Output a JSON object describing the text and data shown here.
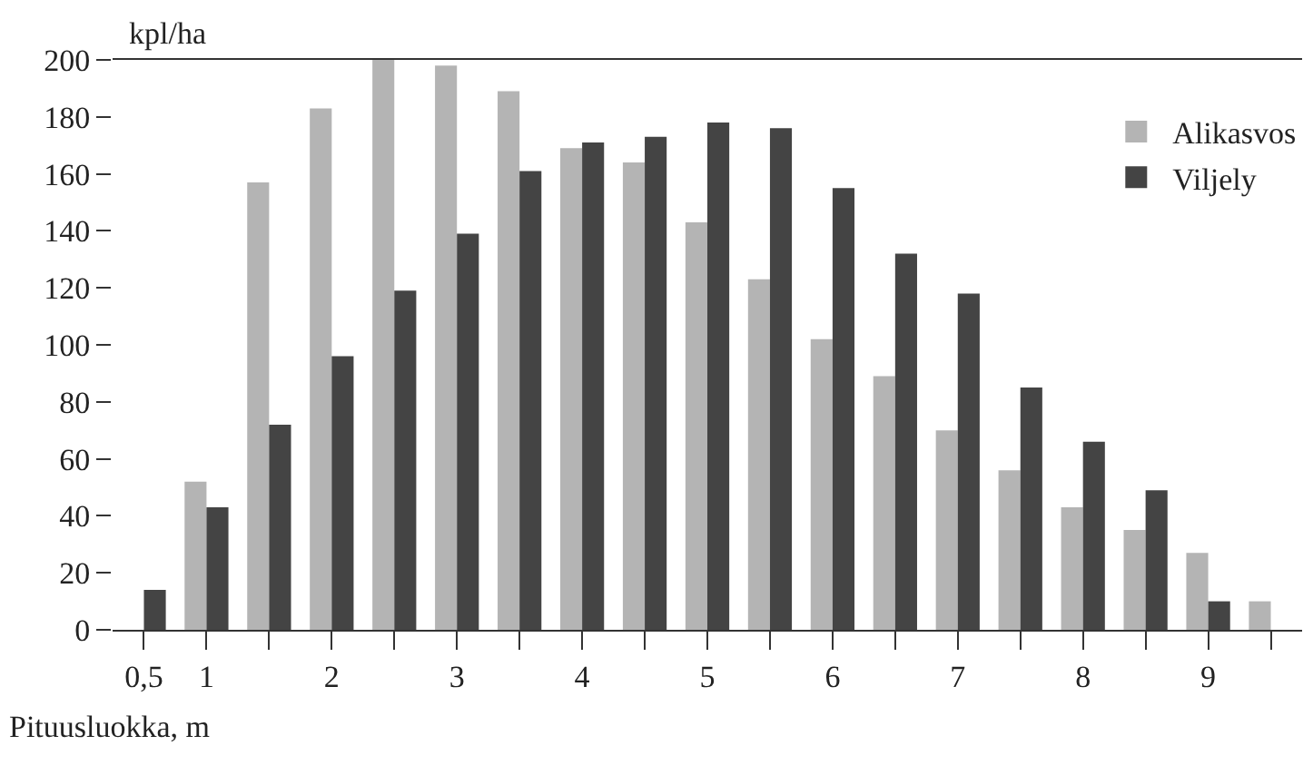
{
  "chart_data": {
    "type": "bar",
    "ylabel": "kpl/ha",
    "xlabel": "Pituusluokka, m",
    "categories": [
      "0,5",
      "1",
      null,
      "2",
      null,
      "3",
      null,
      "4",
      null,
      "5",
      null,
      "6",
      null,
      "7",
      null,
      "8",
      null,
      "9",
      null
    ],
    "series": [
      {
        "name": "Alikasvos",
        "color": "#b4b4b4",
        "values": [
          null,
          52,
          157,
          183,
          200,
          198,
          189,
          169,
          164,
          143,
          123,
          102,
          89,
          70,
          56,
          43,
          35,
          27,
          10
        ]
      },
      {
        "name": "Viljely",
        "color": "#444444",
        "values": [
          14,
          43,
          72,
          96,
          119,
          139,
          161,
          171,
          173,
          178,
          176,
          155,
          132,
          118,
          85,
          66,
          49,
          10,
          null
        ]
      }
    ],
    "ylim": [
      0,
      200
    ],
    "yticks": [
      0,
      20,
      40,
      60,
      80,
      100,
      120,
      140,
      160,
      180,
      200
    ],
    "grid": false,
    "legend": "top right"
  }
}
